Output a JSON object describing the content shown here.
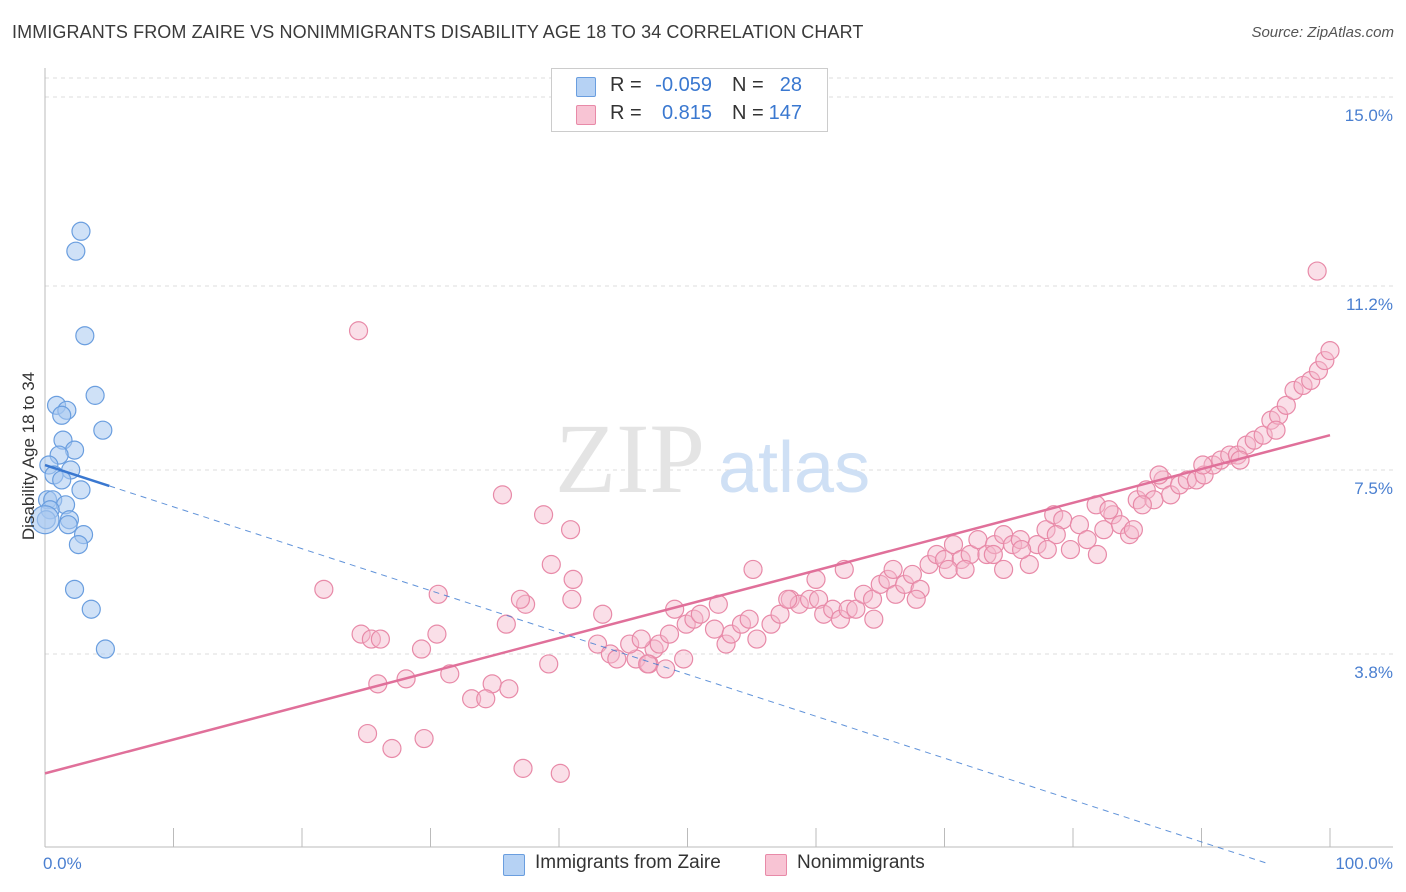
{
  "title": "IMMIGRANTS FROM ZAIRE VS NONIMMIGRANTS DISABILITY AGE 18 TO 34 CORRELATION CHART",
  "source": "Source: ZipAtlas.com",
  "watermark": {
    "zip": "ZIP",
    "atlas": "atlas"
  },
  "legend": {
    "rows": [
      {
        "r_label": "R =",
        "r_value": "-0.059",
        "n_label": "N =",
        "n_value": "28"
      },
      {
        "r_label": "R =",
        "r_value": "0.815",
        "n_label": "N =",
        "n_value": "147"
      }
    ]
  },
  "bottom_legend": [
    "Immigrants from Zaire",
    "Nonimmigrants"
  ],
  "colors": {
    "blue_fill": "#a8c8f0",
    "blue_stroke": "#6a9edf",
    "blue_line": "#3a78d0",
    "pink_fill": "#f5b8cb",
    "pink_stroke": "#e88aa8",
    "pink_line": "#e0709a",
    "tick_text": "#4a7fd0",
    "grid": "#dddddd"
  },
  "chart_data": {
    "type": "scatter",
    "title": "IMMIGRANTS FROM ZAIRE VS NONIMMIGRANTS DISABILITY AGE 18 TO 34 CORRELATION CHART",
    "xlabel": "",
    "ylabel": "Disability Age 18 to 34",
    "xlim": [
      0,
      100
    ],
    "ylim": [
      0,
      15.5
    ],
    "y_ticks": [
      3.8,
      7.5,
      11.2,
      15.0
    ],
    "y_tick_labels": [
      "3.8%",
      "7.5%",
      "11.2%",
      "15.0%"
    ],
    "x_tick_labels": [
      "0.0%",
      "100.0%"
    ],
    "grid": true,
    "legend_position": "top-center",
    "series": [
      {
        "name": "Immigrants from Zaire",
        "r": -0.059,
        "n": 28,
        "trend": {
          "x": [
            0,
            5
          ],
          "y": [
            7.6,
            7.18
          ]
        },
        "trend_extension": {
          "x": [
            5,
            95
          ],
          "y": [
            7.18,
            -0.4
          ]
        },
        "points": [
          [
            2.8,
            12.3
          ],
          [
            2.4,
            11.9
          ],
          [
            3.1,
            10.2
          ],
          [
            3.9,
            9.0
          ],
          [
            0.9,
            8.8
          ],
          [
            1.7,
            8.7
          ],
          [
            1.3,
            8.6
          ],
          [
            4.5,
            8.3
          ],
          [
            1.4,
            8.1
          ],
          [
            2.3,
            7.9
          ],
          [
            1.1,
            7.8
          ],
          [
            0.3,
            7.6
          ],
          [
            2.0,
            7.5
          ],
          [
            0.7,
            7.4
          ],
          [
            1.3,
            7.3
          ],
          [
            2.8,
            7.1
          ],
          [
            0.2,
            6.9
          ],
          [
            0.6,
            6.9
          ],
          [
            1.6,
            6.8
          ],
          [
            0.4,
            6.7
          ],
          [
            0.1,
            6.5
          ],
          [
            1.9,
            6.5
          ],
          [
            1.8,
            6.4
          ],
          [
            3.0,
            6.2
          ],
          [
            2.6,
            6.0
          ],
          [
            2.3,
            5.1
          ],
          [
            3.6,
            4.7
          ],
          [
            4.7,
            3.9
          ]
        ]
      },
      {
        "name": "Nonimmigrants",
        "r": 0.815,
        "n": 147,
        "trend": {
          "x": [
            0,
            100
          ],
          "y": [
            1.4,
            8.2
          ]
        },
        "points": [
          [
            24.4,
            10.3
          ],
          [
            35.6,
            7.0
          ],
          [
            38.8,
            6.6
          ],
          [
            40.9,
            6.3
          ],
          [
            39.4,
            5.6
          ],
          [
            41.1,
            5.3
          ],
          [
            21.7,
            5.1
          ],
          [
            30.6,
            5.0
          ],
          [
            37.4,
            4.8
          ],
          [
            37.0,
            4.9
          ],
          [
            41.0,
            4.9
          ],
          [
            35.9,
            4.4
          ],
          [
            30.5,
            4.2
          ],
          [
            24.6,
            4.2
          ],
          [
            25.4,
            4.1
          ],
          [
            26.1,
            4.1
          ],
          [
            29.3,
            3.9
          ],
          [
            25.9,
            3.2
          ],
          [
            28.1,
            3.3
          ],
          [
            31.5,
            3.4
          ],
          [
            39.2,
            3.6
          ],
          [
            34.8,
            3.2
          ],
          [
            36.1,
            3.1
          ],
          [
            33.2,
            2.9
          ],
          [
            34.3,
            2.9
          ],
          [
            25.1,
            2.2
          ],
          [
            29.5,
            2.1
          ],
          [
            27.0,
            1.9
          ],
          [
            37.2,
            1.5
          ],
          [
            40.1,
            1.4
          ],
          [
            43.0,
            4.0
          ],
          [
            44.0,
            3.8
          ],
          [
            44.5,
            3.7
          ],
          [
            46.0,
            3.7
          ],
          [
            47.0,
            3.6
          ],
          [
            47.4,
            3.9
          ],
          [
            48.3,
            3.5
          ],
          [
            49.7,
            3.7
          ],
          [
            45.5,
            4.0
          ],
          [
            46.4,
            4.1
          ],
          [
            47.8,
            4.0
          ],
          [
            48.6,
            4.2
          ],
          [
            49.9,
            4.4
          ],
          [
            50.5,
            4.5
          ],
          [
            51.0,
            4.6
          ],
          [
            52.1,
            4.3
          ],
          [
            53.0,
            4.0
          ],
          [
            53.4,
            4.2
          ],
          [
            54.2,
            4.4
          ],
          [
            54.8,
            4.5
          ],
          [
            55.4,
            4.1
          ],
          [
            56.5,
            4.4
          ],
          [
            57.2,
            4.6
          ],
          [
            58.0,
            4.9
          ],
          [
            58.7,
            4.8
          ],
          [
            59.5,
            4.9
          ],
          [
            60.2,
            4.9
          ],
          [
            60.6,
            4.6
          ],
          [
            61.3,
            4.7
          ],
          [
            61.9,
            4.5
          ],
          [
            62.5,
            4.7
          ],
          [
            63.1,
            4.7
          ],
          [
            63.7,
            5.0
          ],
          [
            64.4,
            4.9
          ],
          [
            65.0,
            5.2
          ],
          [
            65.6,
            5.3
          ],
          [
            66.2,
            5.0
          ],
          [
            66.9,
            5.2
          ],
          [
            67.5,
            5.4
          ],
          [
            68.1,
            5.1
          ],
          [
            68.8,
            5.6
          ],
          [
            69.4,
            5.8
          ],
          [
            70.0,
            5.7
          ],
          [
            70.7,
            6.0
          ],
          [
            71.3,
            5.7
          ],
          [
            72.0,
            5.8
          ],
          [
            72.6,
            6.1
          ],
          [
            73.3,
            5.8
          ],
          [
            73.9,
            6.0
          ],
          [
            74.6,
            6.2
          ],
          [
            75.3,
            6.0
          ],
          [
            75.9,
            6.1
          ],
          [
            76.6,
            5.6
          ],
          [
            77.2,
            6.0
          ],
          [
            77.9,
            6.3
          ],
          [
            78.5,
            6.6
          ],
          [
            79.2,
            6.5
          ],
          [
            79.8,
            5.9
          ],
          [
            80.5,
            6.4
          ],
          [
            81.1,
            6.1
          ],
          [
            81.8,
            6.8
          ],
          [
            82.4,
            6.3
          ],
          [
            83.1,
            6.6
          ],
          [
            83.7,
            6.4
          ],
          [
            84.4,
            6.2
          ],
          [
            85.0,
            6.9
          ],
          [
            85.7,
            7.1
          ],
          [
            86.3,
            6.9
          ],
          [
            87.0,
            7.3
          ],
          [
            87.6,
            7.0
          ],
          [
            88.3,
            7.2
          ],
          [
            88.9,
            7.3
          ],
          [
            89.6,
            7.3
          ],
          [
            90.2,
            7.4
          ],
          [
            90.9,
            7.6
          ],
          [
            91.5,
            7.7
          ],
          [
            92.2,
            7.8
          ],
          [
            92.8,
            7.8
          ],
          [
            93.5,
            8.0
          ],
          [
            94.1,
            8.1
          ],
          [
            94.8,
            8.2
          ],
          [
            95.4,
            8.5
          ],
          [
            96.0,
            8.6
          ],
          [
            96.6,
            8.8
          ],
          [
            97.2,
            9.1
          ],
          [
            97.9,
            9.2
          ],
          [
            98.5,
            9.3
          ],
          [
            99.1,
            9.5
          ],
          [
            99.6,
            9.7
          ],
          [
            100.0,
            9.9
          ],
          [
            99.0,
            11.5
          ],
          [
            55.1,
            5.5
          ],
          [
            60.0,
            5.3
          ],
          [
            57.8,
            4.9
          ],
          [
            52.4,
            4.8
          ],
          [
            49.0,
            4.7
          ],
          [
            46.9,
            3.6
          ],
          [
            43.4,
            4.6
          ],
          [
            62.2,
            5.5
          ],
          [
            66.0,
            5.5
          ],
          [
            70.3,
            5.5
          ],
          [
            73.8,
            5.8
          ],
          [
            76.0,
            5.9
          ],
          [
            78.7,
            6.2
          ],
          [
            81.9,
            5.8
          ],
          [
            84.7,
            6.3
          ],
          [
            86.7,
            7.4
          ],
          [
            90.1,
            7.6
          ],
          [
            93.0,
            7.7
          ],
          [
            95.8,
            8.3
          ],
          [
            64.5,
            4.5
          ],
          [
            67.8,
            4.9
          ],
          [
            71.6,
            5.5
          ],
          [
            74.6,
            5.5
          ],
          [
            78.0,
            5.9
          ],
          [
            82.8,
            6.7
          ],
          [
            85.4,
            6.8
          ]
        ]
      }
    ]
  }
}
